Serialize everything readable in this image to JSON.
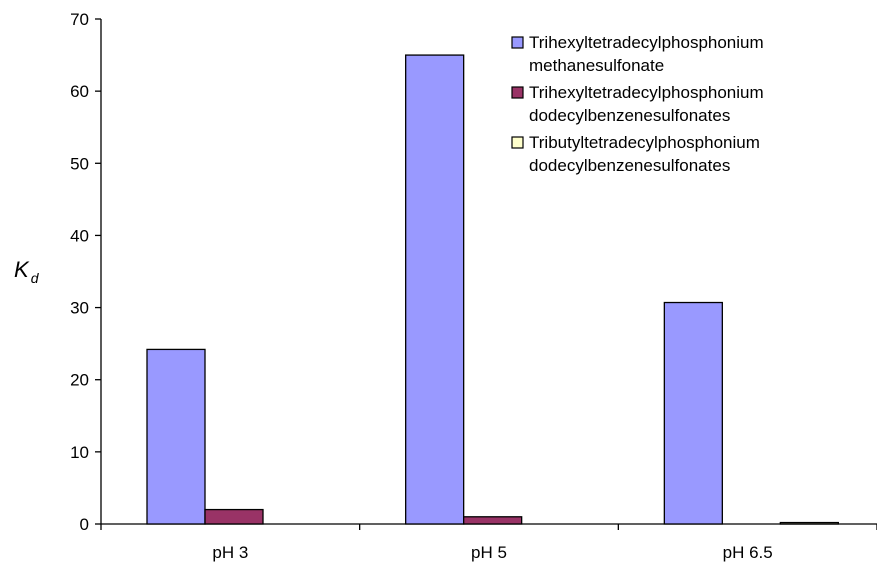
{
  "chart_data": {
    "type": "bar",
    "categories": [
      "pH 3",
      "pH 5",
      "pH 6.5"
    ],
    "series": [
      {
        "name": [
          "Trihexyltetradecylphosphonium",
          "methanesulfonate"
        ],
        "values": [
          24.2,
          65.0,
          30.7
        ],
        "color": "#9999ff"
      },
      {
        "name": [
          "Trihexyltetradecylphosphonium",
          "dodecylbenzenesulfonates"
        ],
        "values": [
          2.0,
          1.0,
          0.0
        ],
        "color": "#993366"
      },
      {
        "name": [
          "Tributyltetradecylphosphonium",
          "dodecylbenzenesulfonates"
        ],
        "values": [
          0.0,
          0.0,
          0.2
        ],
        "color": "#ffffcc"
      }
    ],
    "ylabel_main": "K",
    "ylabel_sub": "d",
    "ylim": [
      0,
      70
    ],
    "yticks": [
      "0",
      "10",
      "20",
      "30",
      "40",
      "50",
      "60",
      "70"
    ],
    "grid": false,
    "legend_position": "top-right"
  }
}
